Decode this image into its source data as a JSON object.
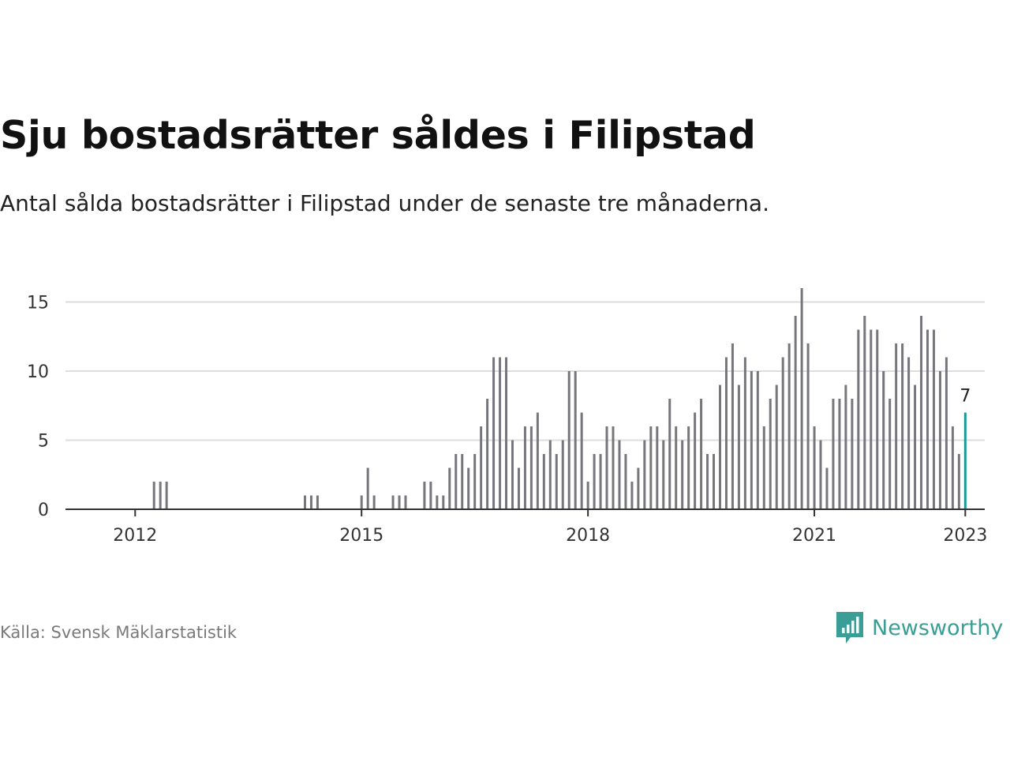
{
  "title": "Sju bostadsrätter såldes i Filipstad",
  "subtitle": "Antal sålda bostadsrätter i Filipstad under de senaste tre månaderna.",
  "source": "Källa: Svensk Mäklarstatistik",
  "brand": "Newsworthy",
  "colors": {
    "bar": "#76767c",
    "highlight": "#1a9c96",
    "grid": "#dddddd",
    "axis": "#333333",
    "brand": "#3a9e96"
  },
  "chart_data": {
    "type": "bar",
    "x": [
      "2011-06",
      "2011-07",
      "2011-08",
      "2011-09",
      "2011-10",
      "2011-11",
      "2011-12",
      "2012-01",
      "2012-02",
      "2012-03",
      "2012-04",
      "2012-05",
      "2012-06",
      "2012-07",
      "2012-08",
      "2012-09",
      "2012-10",
      "2012-11",
      "2012-12",
      "2013-01",
      "2013-02",
      "2013-03",
      "2013-04",
      "2013-05",
      "2013-06",
      "2013-07",
      "2013-08",
      "2013-09",
      "2013-10",
      "2013-11",
      "2013-12",
      "2014-01",
      "2014-02",
      "2014-03",
      "2014-04",
      "2014-05",
      "2014-06",
      "2014-07",
      "2014-08",
      "2014-09",
      "2014-10",
      "2014-11",
      "2014-12",
      "2015-01",
      "2015-02",
      "2015-03",
      "2015-04",
      "2015-05",
      "2015-06",
      "2015-07",
      "2015-08",
      "2015-09",
      "2015-10",
      "2015-11",
      "2015-12",
      "2016-01",
      "2016-02",
      "2016-03",
      "2016-04",
      "2016-05",
      "2016-06",
      "2016-07",
      "2016-08",
      "2016-09",
      "2016-10",
      "2016-11",
      "2016-12",
      "2017-01",
      "2017-02",
      "2017-03",
      "2017-04",
      "2017-05",
      "2017-06",
      "2017-07",
      "2017-08",
      "2017-09",
      "2017-10",
      "2017-11",
      "2017-12",
      "2018-01",
      "2018-02",
      "2018-03",
      "2018-04",
      "2018-05",
      "2018-06",
      "2018-07",
      "2018-08",
      "2018-09",
      "2018-10",
      "2018-11",
      "2018-12",
      "2019-01",
      "2019-02",
      "2019-03",
      "2019-04",
      "2019-05",
      "2019-06",
      "2019-07",
      "2019-08",
      "2019-09",
      "2019-10",
      "2019-11",
      "2019-12",
      "2020-01",
      "2020-02",
      "2020-03",
      "2020-04",
      "2020-05",
      "2020-06",
      "2020-07",
      "2020-08",
      "2020-09",
      "2020-10",
      "2020-11",
      "2020-12",
      "2021-01",
      "2021-02",
      "2021-03",
      "2021-04",
      "2021-05",
      "2021-06",
      "2021-07",
      "2021-08",
      "2021-09",
      "2021-10",
      "2021-11",
      "2021-12",
      "2022-01",
      "2022-02",
      "2022-03",
      "2022-04",
      "2022-05",
      "2022-06",
      "2022-07",
      "2022-08",
      "2022-09",
      "2022-10",
      "2022-11",
      "2022-12",
      "2023-01"
    ],
    "values": [
      0,
      0,
      0,
      0,
      0,
      0,
      0,
      0,
      0,
      0,
      2,
      2,
      2,
      0,
      0,
      0,
      0,
      0,
      0,
      0,
      0,
      0,
      0,
      0,
      0,
      0,
      0,
      0,
      0,
      0,
      0,
      0,
      0,
      0,
      1,
      1,
      1,
      0,
      0,
      0,
      0,
      0,
      0,
      1,
      3,
      1,
      0,
      0,
      1,
      1,
      1,
      0,
      0,
      2,
      2,
      1,
      1,
      3,
      4,
      4,
      3,
      4,
      6,
      8,
      11,
      11,
      11,
      5,
      3,
      6,
      6,
      7,
      4,
      5,
      4,
      5,
      10,
      10,
      7,
      2,
      4,
      4,
      6,
      6,
      5,
      4,
      2,
      3,
      5,
      6,
      6,
      5,
      8,
      6,
      5,
      6,
      7,
      8,
      4,
      4,
      9,
      11,
      12,
      9,
      11,
      10,
      10,
      6,
      8,
      9,
      11,
      12,
      14,
      16,
      12,
      6,
      5,
      3,
      8,
      8,
      9,
      8,
      13,
      14,
      13,
      13,
      10,
      8,
      12,
      12,
      11,
      9,
      14,
      13,
      13,
      10,
      11,
      6,
      4,
      7
    ],
    "highlight_index": 139,
    "highlight_label": "7",
    "x_ticks": [
      "2012",
      "2015",
      "2018",
      "2021",
      "2023"
    ],
    "y_ticks": [
      "0",
      "5",
      "10",
      "15"
    ],
    "ylim": [
      0,
      16
    ],
    "grid": true
  }
}
